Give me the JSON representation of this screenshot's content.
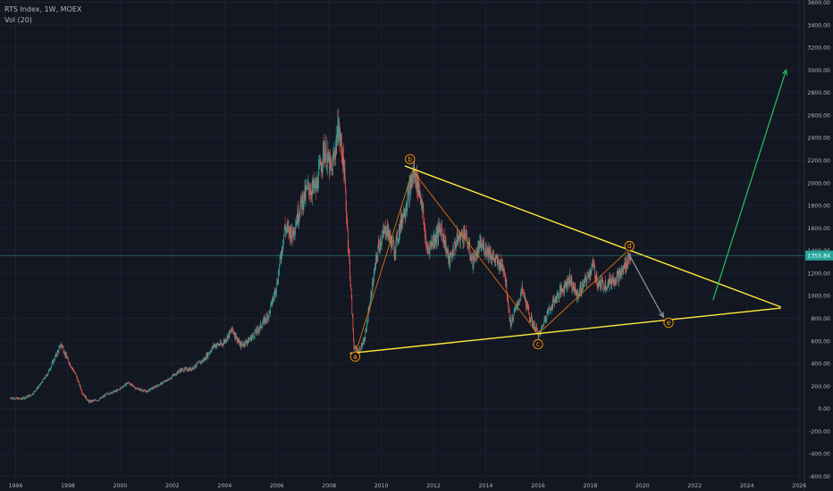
{
  "header": {
    "title": "RTS Index, 1W, MOEX",
    "indicator": "Vol (20)"
  },
  "chart_data": {
    "type": "line",
    "style": "candlestick",
    "xlim": [
      1995.4,
      2026.2
    ],
    "ylim": [
      -620,
      3620
    ],
    "x_ticks": [
      "1996",
      "1998",
      "2000",
      "2002",
      "2004",
      "2006",
      "2008",
      "2010",
      "2012",
      "2014",
      "2016",
      "2018",
      "2020",
      "2022",
      "2024",
      "2026"
    ],
    "y_ticks": [
      "3600.00",
      "3400.00",
      "3200.00",
      "3000.00",
      "2800.00",
      "2600.00",
      "2400.00",
      "2200.00",
      "2000.00",
      "1800.00",
      "1600.00",
      "1400.00",
      "1200.00",
      "1000.00",
      "800.00",
      "600.00",
      "400.00",
      "200.00",
      "0.00",
      "-200.00",
      "-400.00",
      "-600.00"
    ],
    "last_price": {
      "label": "1355.84",
      "value": 1355.84
    },
    "price_series": [
      [
        1995.8,
        95
      ],
      [
        1996.2,
        85
      ],
      [
        1996.6,
        120
      ],
      [
        1996.9,
        200
      ],
      [
        1997.2,
        300
      ],
      [
        1997.5,
        450
      ],
      [
        1997.75,
        570
      ],
      [
        1997.95,
        450
      ],
      [
        1998.3,
        300
      ],
      [
        1998.55,
        140
      ],
      [
        1998.8,
        60
      ],
      [
        1999.2,
        80
      ],
      [
        1999.5,
        130
      ],
      [
        1999.9,
        160
      ],
      [
        2000.3,
        230
      ],
      [
        2000.6,
        180
      ],
      [
        2001.0,
        150
      ],
      [
        2001.4,
        200
      ],
      [
        2001.8,
        250
      ],
      [
        2002.3,
        340
      ],
      [
        2002.7,
        350
      ],
      [
        2003.2,
        430
      ],
      [
        2003.6,
        560
      ],
      [
        2003.9,
        570
      ],
      [
        2004.3,
        700
      ],
      [
        2004.6,
        560
      ],
      [
        2004.9,
        600
      ],
      [
        2005.3,
        700
      ],
      [
        2005.7,
        840
      ],
      [
        2006.0,
        1100
      ],
      [
        2006.3,
        1600
      ],
      [
        2006.6,
        1550
      ],
      [
        2006.9,
        1800
      ],
      [
        2007.2,
        1950
      ],
      [
        2007.5,
        1950
      ],
      [
        2007.8,
        2300
      ],
      [
        2008.1,
        2100
      ],
      [
        2008.35,
        2490
      ],
      [
        2008.55,
        2200
      ],
      [
        2008.8,
        1200
      ],
      [
        2008.95,
        550
      ],
      [
        2009.1,
        500
      ],
      [
        2009.35,
        600
      ],
      [
        2009.6,
        1000
      ],
      [
        2009.9,
        1450
      ],
      [
        2010.2,
        1600
      ],
      [
        2010.5,
        1400
      ],
      [
        2010.8,
        1700
      ],
      [
        2011.0,
        1850
      ],
      [
        2011.25,
        2100
      ],
      [
        2011.5,
        1900
      ],
      [
        2011.75,
        1400
      ],
      [
        2012.0,
        1500
      ],
      [
        2012.3,
        1600
      ],
      [
        2012.6,
        1300
      ],
      [
        2012.9,
        1500
      ],
      [
        2013.2,
        1550
      ],
      [
        2013.5,
        1300
      ],
      [
        2013.8,
        1450
      ],
      [
        2014.1,
        1400
      ],
      [
        2014.4,
        1300
      ],
      [
        2014.7,
        1250
      ],
      [
        2014.95,
        750
      ],
      [
        2015.1,
        850
      ],
      [
        2015.4,
        1050
      ],
      [
        2015.7,
        800
      ],
      [
        2016.05,
        650
      ],
      [
        2016.3,
        820
      ],
      [
        2016.6,
        950
      ],
      [
        2016.9,
        1050
      ],
      [
        2017.2,
        1150
      ],
      [
        2017.5,
        1000
      ],
      [
        2017.8,
        1120
      ],
      [
        2018.1,
        1270
      ],
      [
        2018.3,
        1100
      ],
      [
        2018.6,
        1100
      ],
      [
        2018.9,
        1150
      ],
      [
        2019.2,
        1200
      ],
      [
        2019.45,
        1330
      ],
      [
        2019.55,
        1355.84
      ]
    ],
    "wave_points": [
      {
        "label": "a",
        "x": 2009.0,
        "y": 480
      },
      {
        "label": "b",
        "x": 2011.2,
        "y": 2110
      },
      {
        "label": "c",
        "x": 2016.0,
        "y": 660
      },
      {
        "label": "d",
        "x": 2019.4,
        "y": 1390
      },
      {
        "label": "e",
        "x": 2020.8,
        "y": 820
      }
    ],
    "wave_label_pos": {
      "a": {
        "x": 2009.0,
        "y": 460
      },
      "b": {
        "x": 2011.1,
        "y": 2210
      },
      "c": {
        "x": 2016.0,
        "y": 570
      },
      "d": {
        "x": 2019.5,
        "y": 1440
      },
      "e": {
        "x": 2021.0,
        "y": 760
      }
    },
    "triangle_upper": [
      [
        2010.9,
        2150
      ],
      [
        2025.3,
        900
      ]
    ],
    "triangle_lower": [
      [
        2008.8,
        490
      ],
      [
        2025.3,
        890
      ]
    ],
    "projection_arrows": [
      {
        "color": "#9598a1",
        "from": [
          2019.45,
          1380
        ],
        "to": [
          2020.8,
          810
        ]
      },
      {
        "color": "#22c55e",
        "from": [
          2022.7,
          960
        ],
        "to": [
          2025.5,
          3000
        ]
      }
    ],
    "colors": {
      "background": "#131722",
      "up_candle": "#26a69a",
      "down_candle": "#ef5350",
      "triangle": "#ffeb3b",
      "wave_label": "#ff9800",
      "wave_line": "#f57c00",
      "projection": "#22c55e",
      "price_line": "#26a69a"
    }
  }
}
